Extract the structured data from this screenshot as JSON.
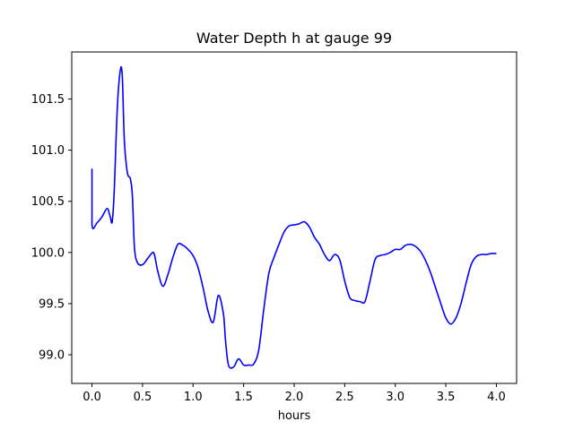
{
  "chart_data": {
    "type": "line",
    "title": "Water Depth h at gauge 99",
    "xlabel": "hours",
    "ylabel": "",
    "xlim": [
      -0.2,
      4.2
    ],
    "ylim": [
      98.72,
      101.96
    ],
    "xticks": [
      0.0,
      0.5,
      1.0,
      1.5,
      2.0,
      2.5,
      3.0,
      3.5,
      4.0
    ],
    "xtick_labels": [
      "0.0",
      "0.5",
      "1.0",
      "1.5",
      "2.0",
      "2.5",
      "3.0",
      "3.5",
      "4.0"
    ],
    "yticks": [
      99.0,
      99.5,
      100.0,
      100.5,
      101.0,
      101.5
    ],
    "ytick_labels": [
      "99.0",
      "99.5",
      "100.0",
      "100.5",
      "101.0",
      "101.5"
    ],
    "grid": false,
    "line_color": "#0000ff",
    "series": [
      {
        "x": [
          0.0,
          0.0,
          0.05,
          0.1,
          0.15,
          0.18,
          0.2,
          0.22,
          0.25,
          0.28,
          0.3,
          0.32,
          0.35,
          0.38,
          0.4,
          0.42,
          0.45,
          0.5,
          0.55,
          0.6,
          0.62,
          0.65,
          0.7,
          0.75,
          0.8,
          0.85,
          0.9,
          0.95,
          1.0,
          1.05,
          1.1,
          1.15,
          1.2,
          1.25,
          1.3,
          1.32,
          1.35,
          1.4,
          1.45,
          1.5,
          1.55,
          1.6,
          1.65,
          1.7,
          1.75,
          1.8,
          1.85,
          1.9,
          1.95,
          2.0,
          2.05,
          2.1,
          2.15,
          2.2,
          2.25,
          2.3,
          2.35,
          2.4,
          2.45,
          2.5,
          2.55,
          2.6,
          2.65,
          2.7,
          2.75,
          2.8,
          2.85,
          2.9,
          2.95,
          3.0,
          3.05,
          3.1,
          3.15,
          3.2,
          3.25,
          3.3,
          3.35,
          3.4,
          3.45,
          3.5,
          3.55,
          3.6,
          3.65,
          3.7,
          3.75,
          3.8,
          3.85,
          3.9,
          3.95,
          4.0
        ],
        "y": [
          100.82,
          100.27,
          100.29,
          100.35,
          100.43,
          100.35,
          100.3,
          100.6,
          101.4,
          101.78,
          101.72,
          101.1,
          100.78,
          100.72,
          100.55,
          100.05,
          99.9,
          99.88,
          99.94,
          100.0,
          99.97,
          99.82,
          99.67,
          99.78,
          99.95,
          100.08,
          100.07,
          100.03,
          99.97,
          99.85,
          99.65,
          99.42,
          99.32,
          99.58,
          99.4,
          99.15,
          98.9,
          98.88,
          98.96,
          98.9,
          98.9,
          98.91,
          99.05,
          99.45,
          99.8,
          99.95,
          100.08,
          100.2,
          100.26,
          100.27,
          100.28,
          100.3,
          100.25,
          100.15,
          100.08,
          99.98,
          99.92,
          99.98,
          99.93,
          99.72,
          99.56,
          99.53,
          99.52,
          99.52,
          99.72,
          99.93,
          99.97,
          99.98,
          100.0,
          100.03,
          100.03,
          100.07,
          100.08,
          100.06,
          100.01,
          99.92,
          99.8,
          99.65,
          99.5,
          99.36,
          99.3,
          99.36,
          99.5,
          99.7,
          99.88,
          99.96,
          99.98,
          99.98,
          99.99,
          99.99
        ]
      }
    ]
  }
}
